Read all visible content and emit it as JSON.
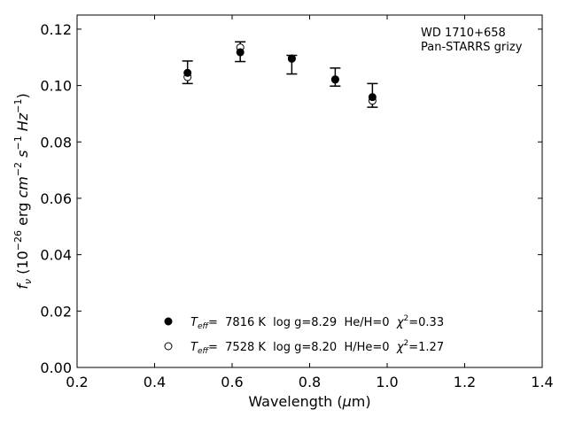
{
  "chart_data": {
    "type": "scatter",
    "xlim": [
      0.2,
      1.4
    ],
    "ylim": [
      0.0,
      0.125
    ],
    "xticks": [
      "0.2",
      "0.4",
      "0.6",
      "0.8",
      "1.0",
      "1.2",
      "1.4"
    ],
    "yticks": [
      "0.00",
      "0.02",
      "0.04",
      "0.06",
      "0.08",
      "0.10",
      "0.12"
    ],
    "xlabel": "Wavelength (μm)",
    "ylabel": "f_ν (10^−26 erg cm^−2 s^−1 Hz^−1)",
    "annotation": [
      "WD 1710+658",
      "Pan-STARRS grizy"
    ],
    "observed": {
      "x": [
        0.485,
        0.621,
        0.754,
        0.866,
        0.962
      ],
      "y": [
        0.1047,
        0.112,
        0.1074,
        0.103,
        0.0965
      ],
      "yerr": [
        0.004,
        0.0035,
        0.0033,
        0.0032,
        0.0042
      ]
    },
    "series": [
      {
        "name": "Teff= 7816 K log g=8.29 He/H=0 χ2=0.33",
        "marker": "filled-circle",
        "x": [
          0.485,
          0.621,
          0.754,
          0.866,
          0.962
        ],
        "y": [
          0.1045,
          0.1118,
          0.1095,
          0.1022,
          0.0959
        ]
      },
      {
        "name": "Teff= 7528 K log g=8.20 H/He=0 χ2=1.27",
        "marker": "open-circle",
        "x": [
          0.485,
          0.621,
          0.754,
          0.866,
          0.962
        ],
        "y": [
          0.103,
          0.1135,
          0.1096,
          0.1021,
          0.0946
        ]
      }
    ],
    "legend": [
      {
        "teff_label": "T",
        "teff_sub": "eff",
        "teff_rest": "=  7816 K  log g=8.29  He/H=0  ",
        "chi": "χ",
        "chi_sup": "2",
        "chi_rest": "=0.33"
      },
      {
        "teff_label": "T",
        "teff_sub": "eff",
        "teff_rest": "=  7528 K  log g=8.20  H/He=0  ",
        "chi": "χ",
        "chi_sup": "2",
        "chi_rest": "=1.27"
      }
    ]
  }
}
